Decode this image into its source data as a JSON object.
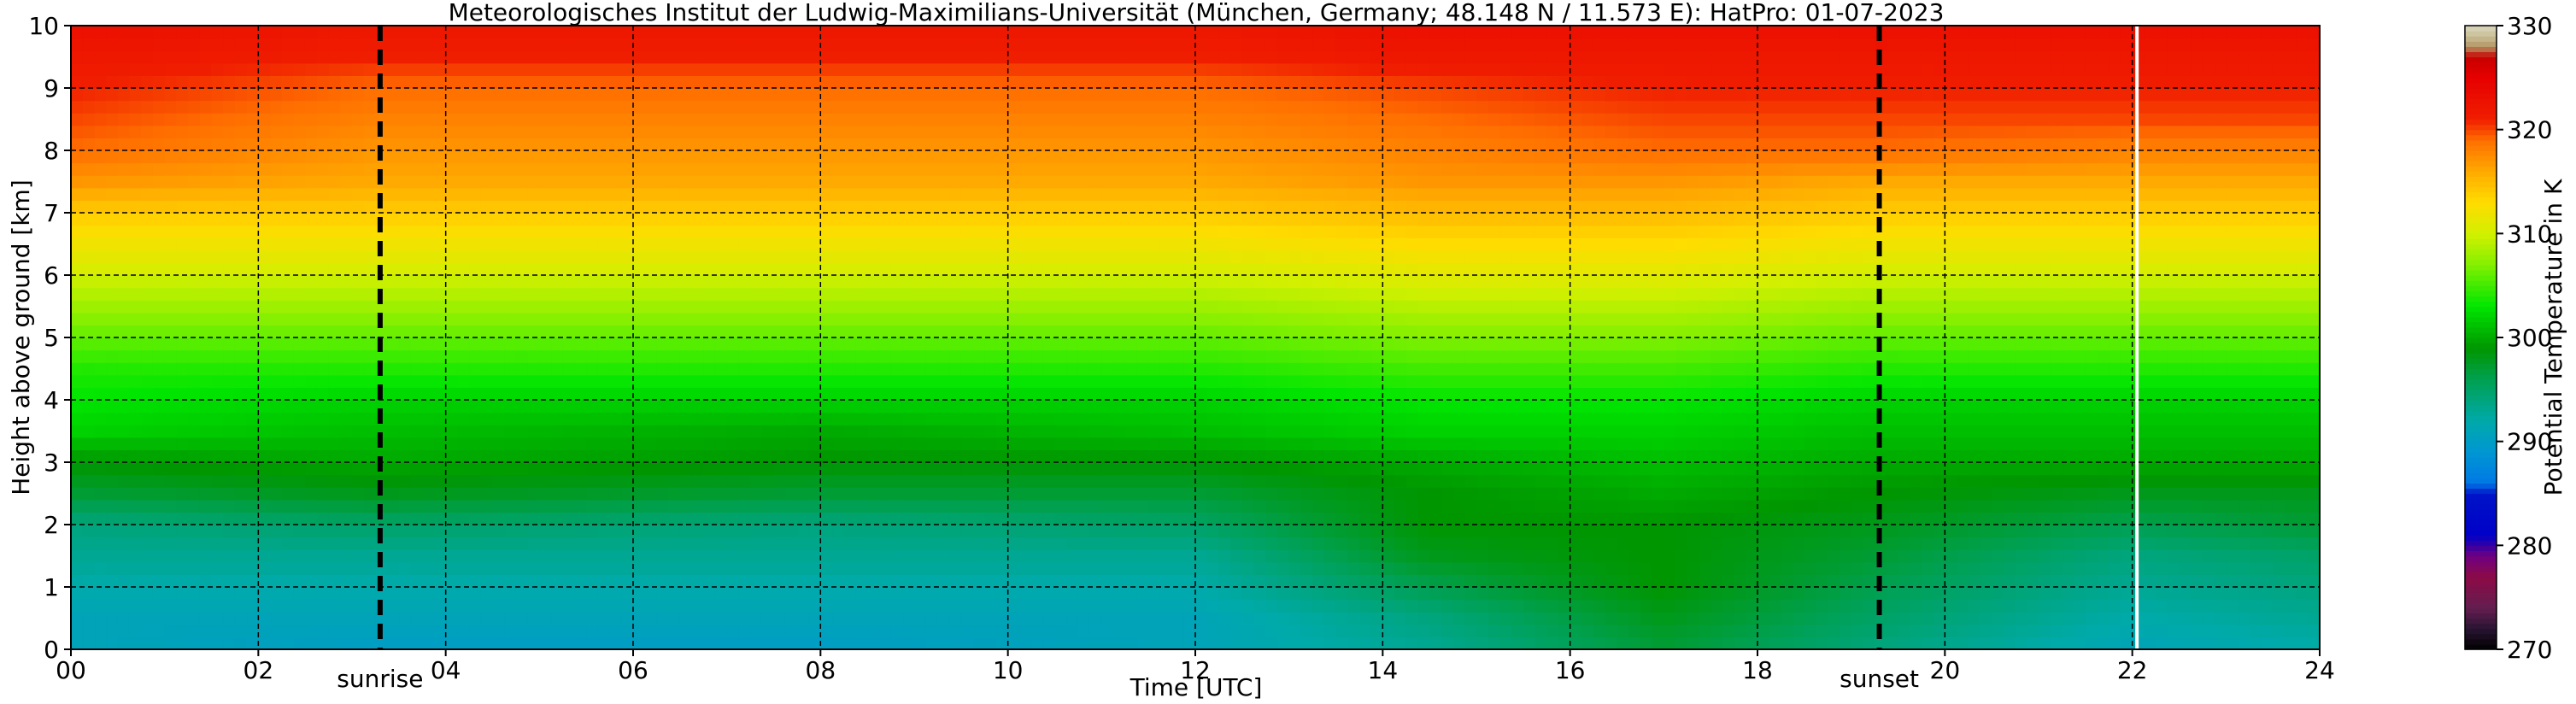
{
  "chart_data": {
    "type": "heatmap",
    "title": "Meteorologisches Institut der Ludwig-Maximilians-Universität (München, Germany; 48.148 N / 11.573 E):    HatPro: 01-07-2023",
    "xlabel": "Time [UTC]",
    "ylabel": "Height above ground [km]",
    "colorbar_label": "Potential Temperature in K",
    "xlim": [
      0,
      24
    ],
    "ylim": [
      0,
      10
    ],
    "x_ticks": [
      "00",
      "02",
      "04",
      "06",
      "08",
      "10",
      "12",
      "14",
      "16",
      "18",
      "20",
      "22",
      "24"
    ],
    "y_ticks": [
      "0",
      "1",
      "2",
      "3",
      "4",
      "5",
      "6",
      "7",
      "8",
      "9",
      "10"
    ],
    "colorbar_range": [
      270,
      330
    ],
    "colorbar_ticks": [
      "270",
      "280",
      "290",
      "300",
      "310",
      "320",
      "330"
    ],
    "grid": true,
    "events": [
      {
        "label": "sunrise",
        "time_utc": 3.3
      },
      {
        "label": "sunset",
        "time_utc": 19.3
      }
    ],
    "data_gap_time_utc": 22.05,
    "potential_temperature_profile_estimate": {
      "heights_km": [
        0,
        0.5,
        1,
        1.5,
        2,
        2.5,
        3,
        3.5,
        4,
        4.5,
        5,
        5.5,
        6,
        6.5,
        7,
        7.5,
        8,
        8.5,
        9,
        9.5,
        10
      ],
      "times_utc": [
        0,
        3.3,
        8,
        12,
        14.5,
        17,
        19.3,
        22,
        24
      ],
      "theta_K": [
        [
          291,
          291,
          292,
          293,
          294,
          297,
          299,
          302,
          303,
          304,
          306,
          308,
          310,
          312,
          314,
          317,
          319,
          320,
          321,
          322,
          323
        ],
        [
          290,
          291,
          292,
          293,
          295,
          298,
          300,
          301,
          302,
          304,
          306,
          308,
          310,
          312,
          314,
          316,
          317,
          318,
          319,
          321,
          322
        ],
        [
          290,
          291,
          292,
          293,
          294,
          297,
          299,
          300,
          302,
          304,
          306,
          308,
          310,
          312,
          314,
          316,
          317,
          318,
          319,
          321,
          322
        ],
        [
          291,
          291,
          292,
          293,
          295,
          297,
          299,
          301,
          302,
          304,
          306,
          308,
          310,
          312,
          314,
          316,
          317,
          318,
          319,
          321,
          322
        ],
        [
          293,
          294,
          296,
          298,
          299,
          299,
          300,
          302,
          303,
          305,
          307,
          309,
          311,
          313,
          315,
          317,
          318,
          319,
          320,
          322,
          323
        ],
        [
          297,
          298,
          299,
          299,
          299,
          300,
          301,
          302,
          303,
          305,
          307,
          309,
          311,
          313,
          315,
          317,
          319,
          320,
          321,
          322,
          323
        ],
        [
          294,
          295,
          296,
          297,
          298,
          299,
          300,
          301,
          302,
          304,
          306,
          308,
          310,
          312,
          314,
          316,
          319,
          320,
          321,
          322,
          323
        ],
        [
          291,
          292,
          293,
          294,
          296,
          298,
          300,
          301,
          302,
          304,
          306,
          308,
          310,
          312,
          314,
          316,
          318,
          320,
          321,
          322,
          323
        ],
        [
          292,
          293,
          294,
          295,
          297,
          298,
          300,
          301,
          302,
          304,
          306,
          308,
          310,
          312,
          314,
          316,
          318,
          320,
          321,
          322,
          323
        ]
      ]
    }
  }
}
